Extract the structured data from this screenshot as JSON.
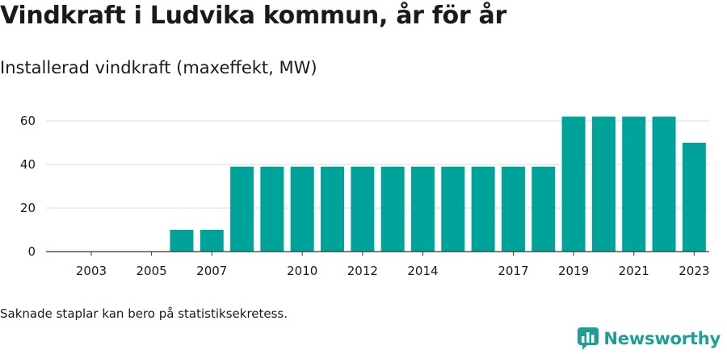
{
  "title": "Vindkraft i Ludvika kommun, år för år",
  "subtitle": "Installerad vindkraft (maxeffekt, MW)",
  "footnote": "Saknade staplar kan bero på statistiksekretess.",
  "brand": {
    "name": "Newsworthy",
    "logo_icon": "newsworthy-bar-logo-icon",
    "color": "#1f9e96"
  },
  "chart_data": {
    "type": "bar",
    "bar_color": "#00a39a",
    "categories": [
      "2002",
      "2003",
      "2004",
      "2005",
      "2006",
      "2007",
      "2008",
      "2009",
      "2010",
      "2011",
      "2012",
      "2013",
      "2014",
      "2015",
      "2016",
      "2017",
      "2018",
      "2019",
      "2020",
      "2021",
      "2022",
      "2023"
    ],
    "values": [
      0,
      0,
      0,
      0,
      10,
      10,
      39,
      39,
      39,
      39,
      39,
      39,
      39,
      39,
      39,
      39,
      39,
      62,
      62,
      62,
      62,
      50
    ],
    "x_tick_labels": [
      "2003",
      "2005",
      "2007",
      "2010",
      "2012",
      "2014",
      "2017",
      "2019",
      "2021",
      "2023"
    ],
    "y_ticks": [
      0,
      20,
      40,
      60
    ],
    "ylim": [
      0,
      65
    ],
    "xlabel": "",
    "ylabel": "",
    "grid": true
  }
}
